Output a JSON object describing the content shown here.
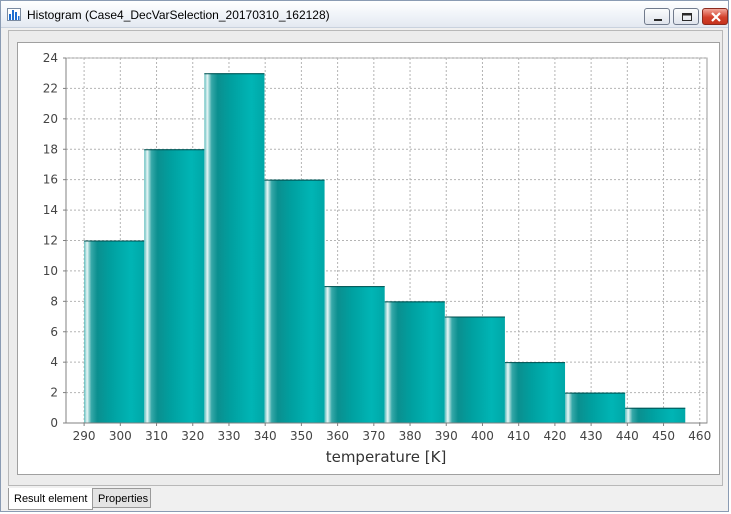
{
  "window": {
    "title": "Histogram  (Case4_DecVarSelection_20170310_162128)",
    "icon": "histogram-icon",
    "buttons": [
      "minimize-icon",
      "maximize-icon",
      "close-icon"
    ]
  },
  "tabs": [
    {
      "label": "Result element",
      "active": true
    },
    {
      "label": "Properties",
      "active": false
    }
  ],
  "colors": {
    "bar": "#00a3a3",
    "bar_dark": "#007a7a",
    "bar_highlight": "#e6f4f4",
    "grid": "#b4b4b4",
    "window_border": "#8a9bb3"
  },
  "chart_data": {
    "type": "bar",
    "title": "",
    "xlabel": "temperature [K]",
    "ylabel": "",
    "xlim": [
      285,
      462
    ],
    "ylim": [
      0,
      24
    ],
    "x_ticks": [
      290,
      300,
      310,
      320,
      330,
      340,
      350,
      360,
      370,
      380,
      390,
      400,
      410,
      420,
      430,
      440,
      450,
      460
    ],
    "y_ticks": [
      0,
      2,
      4,
      6,
      8,
      10,
      12,
      14,
      16,
      18,
      20,
      22,
      24
    ],
    "grid": true,
    "bins": [
      {
        "start": 290.0,
        "end": 306.6,
        "count": 12
      },
      {
        "start": 306.6,
        "end": 323.2,
        "count": 18
      },
      {
        "start": 323.2,
        "end": 339.8,
        "count": 23
      },
      {
        "start": 339.8,
        "end": 356.4,
        "count": 16
      },
      {
        "start": 356.4,
        "end": 373.0,
        "count": 9
      },
      {
        "start": 373.0,
        "end": 389.6,
        "count": 8
      },
      {
        "start": 389.6,
        "end": 406.2,
        "count": 7
      },
      {
        "start": 406.2,
        "end": 422.8,
        "count": 4
      },
      {
        "start": 422.8,
        "end": 439.4,
        "count": 2
      },
      {
        "start": 439.4,
        "end": 456.0,
        "count": 1
      }
    ]
  }
}
